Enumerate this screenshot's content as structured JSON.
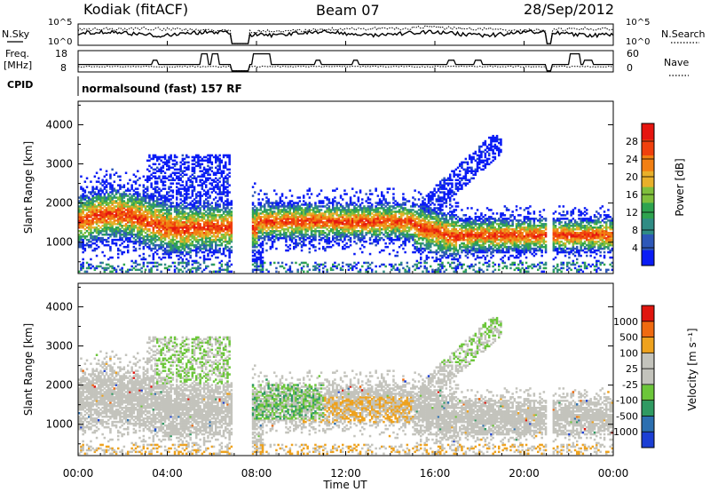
{
  "header": {
    "station": "Kodiak (fitACF)",
    "beam": "Beam 07",
    "date": "28/Sep/2012",
    "cpid_label": "CPID",
    "cpid_value": "normalsound (fast) 157 RF"
  },
  "chart_data": [
    {
      "type": "line",
      "name": "sky-noise",
      "left_label": "N.Sky",
      "right_label": "N.Search",
      "left_ticks": [
        "10^5",
        "10^0"
      ],
      "right_ticks": [
        "10^5",
        "10^0"
      ],
      "series": [
        {
          "name": "N.Sky",
          "style": "solid"
        },
        {
          "name": "N.Search",
          "style": "dotted"
        }
      ],
      "y_scale": "log",
      "ylim": [
        1,
        100000
      ]
    },
    {
      "type": "line",
      "name": "frequency-nave",
      "left_label_line1": "Freq.",
      "left_label_line2": "[MHz]",
      "right_label": "Nave",
      "left_ticks": [
        "18",
        "8"
      ],
      "right_ticks": [
        "60",
        "0"
      ],
      "left_ylim": [
        8,
        18
      ],
      "right_ylim": [
        0,
        60
      ],
      "series": [
        {
          "name": "Freq.",
          "style": "solid"
        },
        {
          "name": "Nave",
          "style": "dotted"
        }
      ]
    },
    {
      "type": "heatmap",
      "name": "power",
      "ylabel": "Slant Range [km]",
      "yticks": [
        "1000",
        "2000",
        "3000",
        "4000"
      ],
      "ylim": [
        200,
        4600
      ],
      "colorbar_label": "Power [dB]",
      "colorbar_ticks": [
        "4",
        "8",
        "12",
        "16",
        "20",
        "24",
        "28"
      ],
      "colorbar_range": [
        0,
        32
      ],
      "colorbar_colors": [
        "#0a1cf5",
        "#2d57b8",
        "#2f8c84",
        "#2ea34f",
        "#7fbf3c",
        "#e8b02a",
        "#f27f12",
        "#f0400d",
        "#e6150f"
      ]
    },
    {
      "type": "heatmap",
      "name": "velocity",
      "ylabel": "Slant Range [km]",
      "yticks": [
        "1000",
        "2000",
        "3000",
        "4000"
      ],
      "ylim": [
        200,
        4600
      ],
      "colorbar_label": "Velocity [m s⁻¹]",
      "colorbar_ticks": [
        "1000",
        "500",
        "100",
        "25",
        "-25",
        "-100",
        "-500",
        "-1000"
      ],
      "colorbar_colors": [
        "#1c3fd4",
        "#2c6fb0",
        "#2f9a62",
        "#6cc63a",
        "#c3c3bc",
        "#c3c3bc",
        "#eea21e",
        "#ef6a10",
        "#e0150e"
      ]
    }
  ],
  "time_axis": {
    "label": "Time UT",
    "ticks": [
      "00:00",
      "04:00",
      "08:00",
      "12:00",
      "16:00",
      "20:00",
      "00:00"
    ],
    "range_hours": [
      0,
      24
    ]
  }
}
